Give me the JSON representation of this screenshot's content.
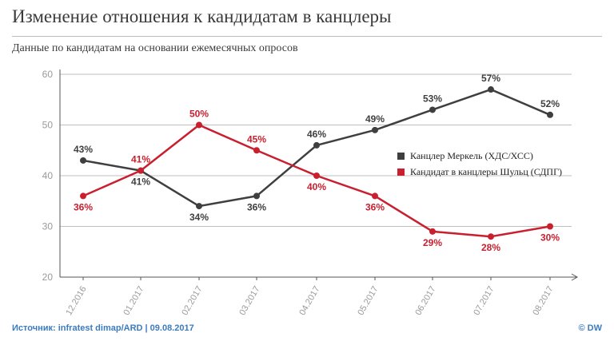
{
  "header": {
    "title": "Изменение отношения к кандидатам в канцлеры",
    "subtitle": "Данные по кандидатам на основании ежемесячных опросов"
  },
  "footer": {
    "source": "Источник: infratest dimap/ARD | 09.08.2017",
    "brand": "© DW"
  },
  "colors": {
    "series_merkel": "#3f3f3f",
    "series_schulz": "#c8202f",
    "grid": "#bfbfbf",
    "axis_text": "#9a9a9a",
    "source_text": "#3b7bbf"
  },
  "chart_data": {
    "type": "line",
    "title": "Изменение отношения к кандидатам в канцлеры",
    "subtitle": "Данные по кандидатам на основании ежемесячных опросов",
    "categories": [
      "12.2016",
      "01.2017",
      "02.2017",
      "03.2017",
      "04.2017",
      "05.2017",
      "06.2017",
      "07.2017",
      "08.2017"
    ],
    "yticks": [
      20,
      30,
      40,
      50,
      60
    ],
    "ylim": [
      20,
      60
    ],
    "grid": "horizontal",
    "legend_position": "right",
    "series": [
      {
        "name": "Канцлер Меркель (ХДС/ХСС)",
        "color": "#3f3f3f",
        "values": [
          43,
          41,
          34,
          36,
          46,
          49,
          53,
          57,
          52
        ],
        "labels": [
          "43%",
          "41%",
          "34%",
          "36%",
          "46%",
          "49%",
          "53%",
          "57%",
          "52%"
        ],
        "label_pos": [
          "above",
          "below",
          "below",
          "below",
          "above",
          "above",
          "above",
          "above",
          "above"
        ]
      },
      {
        "name": "Кандидат в канцлеры Шульц (СДПГ)",
        "color": "#c8202f",
        "values": [
          36,
          41,
          50,
          45,
          40,
          36,
          29,
          28,
          30
        ],
        "labels": [
          "36%",
          "41%",
          "50%",
          "45%",
          "40%",
          "36%",
          "29%",
          "28%",
          "30%"
        ],
        "label_pos": [
          "below",
          "above",
          "above",
          "above",
          "below",
          "below",
          "below",
          "below",
          "below"
        ]
      }
    ]
  }
}
